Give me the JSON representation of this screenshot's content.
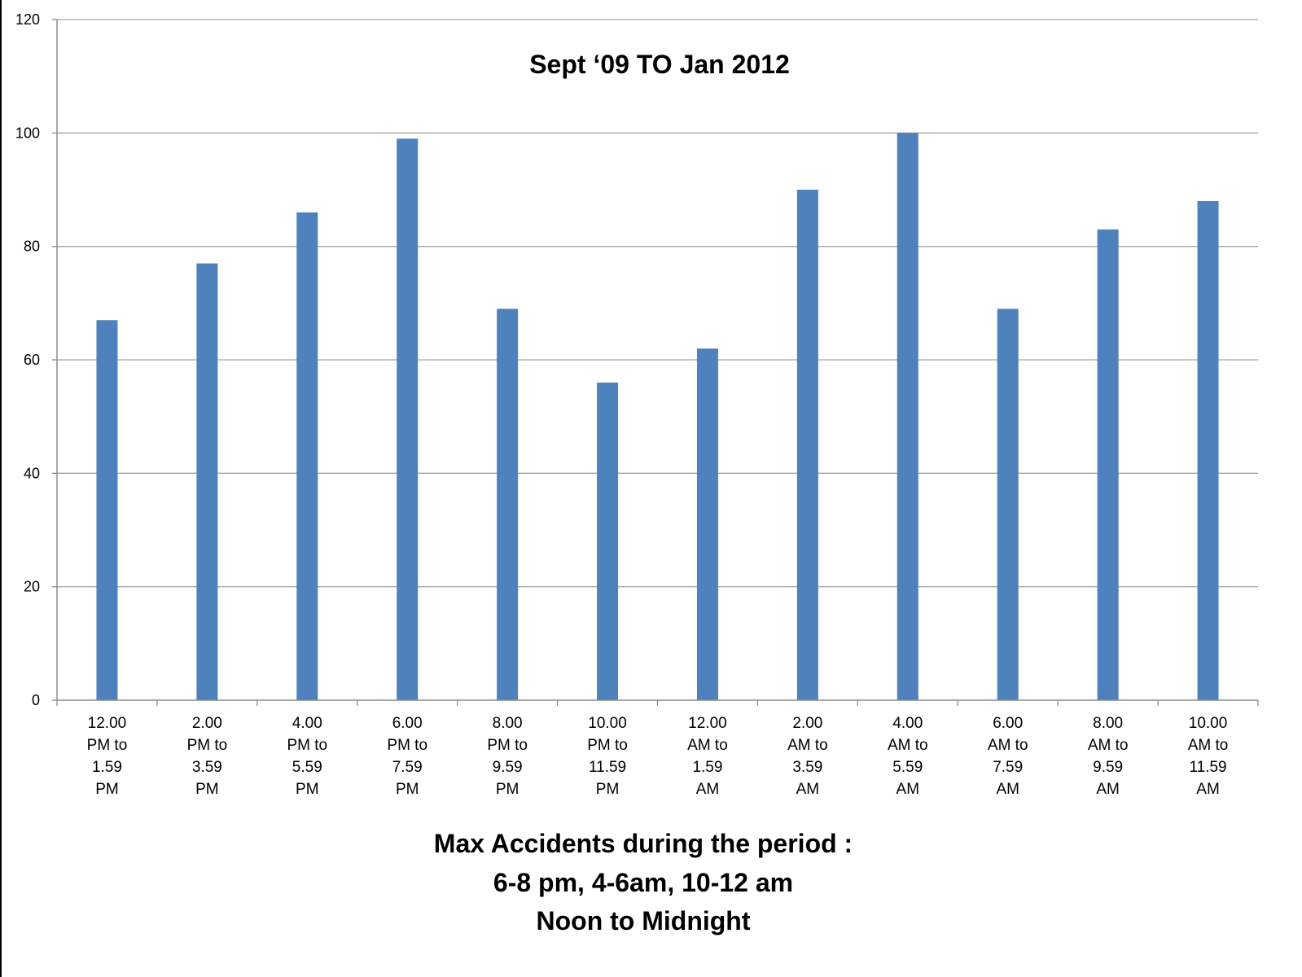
{
  "chart_data": {
    "type": "bar",
    "title": "Sept  ‘09 TO Jan 2012",
    "xlabel": "",
    "ylabel": "",
    "ylim": [
      0,
      120
    ],
    "yticks": [
      0,
      20,
      40,
      60,
      80,
      100,
      120
    ],
    "grid": true,
    "categories": [
      [
        "12.00",
        "PM to",
        "1.59",
        "PM"
      ],
      [
        "2.00",
        "PM to",
        "3.59",
        "PM"
      ],
      [
        "4.00",
        "PM to",
        "5.59",
        "PM"
      ],
      [
        "6.00",
        "PM to",
        "7.59",
        "PM"
      ],
      [
        "8.00",
        "PM to",
        "9.59",
        "PM"
      ],
      [
        "10.00",
        "PM to",
        "11.59",
        "PM"
      ],
      [
        "12.00",
        "AM to",
        "1.59",
        "AM"
      ],
      [
        "2.00",
        "AM to",
        "3.59",
        "AM"
      ],
      [
        "4.00",
        "AM to",
        "5.59",
        "AM"
      ],
      [
        "6.00",
        "AM to",
        "7.59",
        "AM"
      ],
      [
        "8.00",
        "AM to",
        "9.59",
        "AM"
      ],
      [
        "10.00",
        "AM to",
        "11.59",
        "AM"
      ]
    ],
    "values": [
      67,
      77,
      86,
      99,
      69,
      56,
      62,
      90,
      100,
      69,
      83,
      88
    ],
    "bar_color": "#4f81bd",
    "grid_color": "#a6a6a6"
  },
  "notes": {
    "line1": "Max Accidents during the period :",
    "line2": "6-8 pm,  4-6am,  10-12 am",
    "line3": "Noon to Midnight"
  }
}
